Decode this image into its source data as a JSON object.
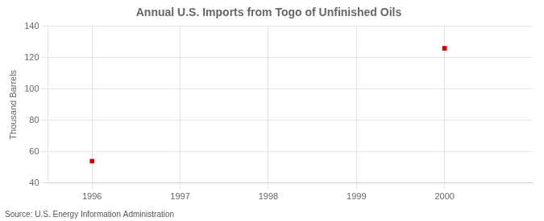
{
  "chart_data": {
    "type": "scatter",
    "title": "Annual U.S. Imports from Togo of Unfinished Oils",
    "ylabel": "Thousand Barrels",
    "source": "Source: U.S. Energy Information Administration",
    "x": [
      1996,
      2000
    ],
    "values": [
      54,
      126
    ],
    "xlim": [
      1995.5,
      2001.0
    ],
    "ylim": [
      40,
      140
    ],
    "xticks": [
      1996,
      1997,
      1998,
      1999,
      2000
    ],
    "yticks": [
      40,
      60,
      80,
      100,
      120,
      140
    ],
    "color": "#cc0000",
    "marker": "square",
    "grid": true
  }
}
